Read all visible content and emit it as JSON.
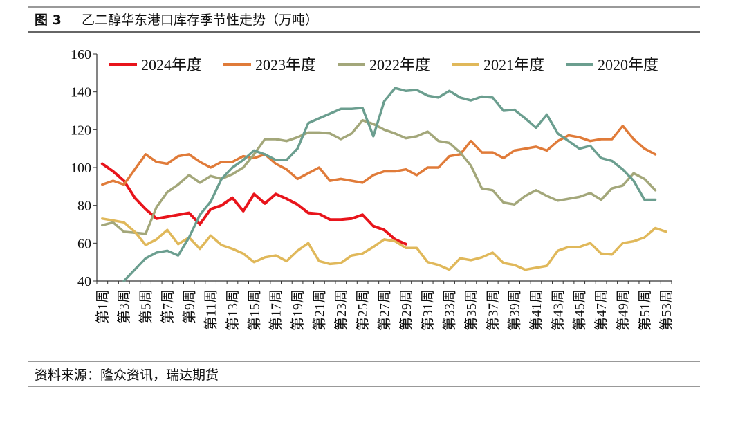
{
  "header": {
    "figure_label": "图 3",
    "title": "乙二醇华东港口库存季节性走势（万吨）"
  },
  "footer": {
    "source": "资料来源：隆众资讯，瑞达期货"
  },
  "chart_data": {
    "type": "line",
    "categories": [
      "第1周",
      null,
      "第3周",
      null,
      "第5周",
      null,
      "第7周",
      null,
      "第9周",
      null,
      "第11周",
      null,
      "第13周",
      null,
      "第15周",
      null,
      "第17周",
      null,
      "第19周",
      null,
      "第21周",
      null,
      "第23周",
      null,
      "第25周",
      null,
      "第27周",
      null,
      "第29周",
      null,
      "第31周",
      null,
      "第33周",
      null,
      "第35周",
      null,
      "第37周",
      null,
      "第39周",
      null,
      "第41周",
      null,
      "第43周",
      null,
      "第45周",
      null,
      "第47周",
      null,
      "第49周",
      null,
      "第51周",
      null,
      "第53周"
    ],
    "ylim": [
      40,
      160
    ],
    "yticks": [
      40,
      60,
      80,
      100,
      120,
      140,
      160
    ],
    "legend": "top",
    "series": [
      {
        "name": "2024年度",
        "color": "#e8141b",
        "values": [
          102,
          98,
          93,
          84,
          78,
          73,
          74,
          75,
          76,
          70,
          78,
          80,
          84,
          77,
          86,
          81,
          86,
          83.5,
          80.5,
          76,
          75.5,
          72.5,
          72.5,
          73,
          75,
          69,
          67,
          62,
          59.5,
          null,
          null,
          null,
          null,
          null,
          null,
          null,
          null,
          null,
          null,
          null,
          null,
          null,
          null,
          null,
          null,
          null,
          null,
          null,
          null,
          null,
          null,
          null,
          null
        ]
      },
      {
        "name": "2023年度",
        "color": "#e07b39",
        "values": [
          91,
          93,
          91,
          99,
          107,
          103,
          102,
          106,
          107,
          103,
          100,
          103,
          103,
          106,
          105,
          107,
          102,
          99,
          94,
          97,
          100,
          93,
          94,
          93,
          92,
          96,
          98,
          98,
          99,
          96,
          100,
          100,
          106,
          107,
          114,
          108,
          108,
          105,
          109,
          110,
          111,
          109,
          114,
          117,
          116,
          114,
          115,
          115,
          122,
          115,
          110,
          107,
          null
        ]
      },
      {
        "name": "2022年度",
        "color": "#a3a77a",
        "values": [
          69.5,
          71,
          66,
          65.5,
          65,
          79,
          87,
          91,
          96,
          92,
          95.5,
          94,
          96.5,
          100,
          107,
          115,
          115,
          114,
          116,
          118.5,
          118.5,
          118,
          115,
          118,
          125,
          123,
          120,
          118,
          115.5,
          116.5,
          119,
          114,
          113,
          108,
          101,
          89,
          88,
          81.5,
          80.5,
          85,
          88,
          85,
          82.5,
          83.5,
          84.5,
          86.5,
          83,
          89,
          90.5,
          97,
          94,
          88,
          null
        ]
      },
      {
        "name": "2021年度",
        "color": "#e0b85a",
        "values": [
          73,
          72,
          71,
          66,
          59,
          62,
          67,
          59.5,
          63,
          57,
          64,
          59,
          57,
          54.5,
          50,
          52.5,
          53.5,
          50.5,
          56,
          60,
          50.5,
          49,
          49.5,
          53.5,
          54.5,
          58,
          62,
          61,
          57.5,
          57.5,
          50,
          48.5,
          46,
          52,
          51,
          52.5,
          55,
          49.5,
          48.5,
          46,
          47,
          48,
          56,
          58,
          58,
          60,
          54.5,
          54,
          60,
          61,
          63,
          68,
          66
        ]
      },
      {
        "name": "2020年度",
        "color": "#6b9e8f",
        "values": [
          40,
          null,
          40,
          46,
          52,
          55,
          56,
          53.5,
          63,
          75,
          82,
          94,
          100,
          104,
          109,
          107,
          104,
          104,
          110,
          123.5,
          126,
          128.5,
          131,
          131,
          131.5,
          116.5,
          135,
          142,
          140.5,
          141,
          138,
          137,
          140.5,
          137,
          135.5,
          137.5,
          137,
          130,
          130.5,
          126,
          121,
          128,
          118,
          114,
          110,
          111.5,
          105,
          103.5,
          99,
          93,
          83,
          83,
          null
        ]
      }
    ]
  }
}
